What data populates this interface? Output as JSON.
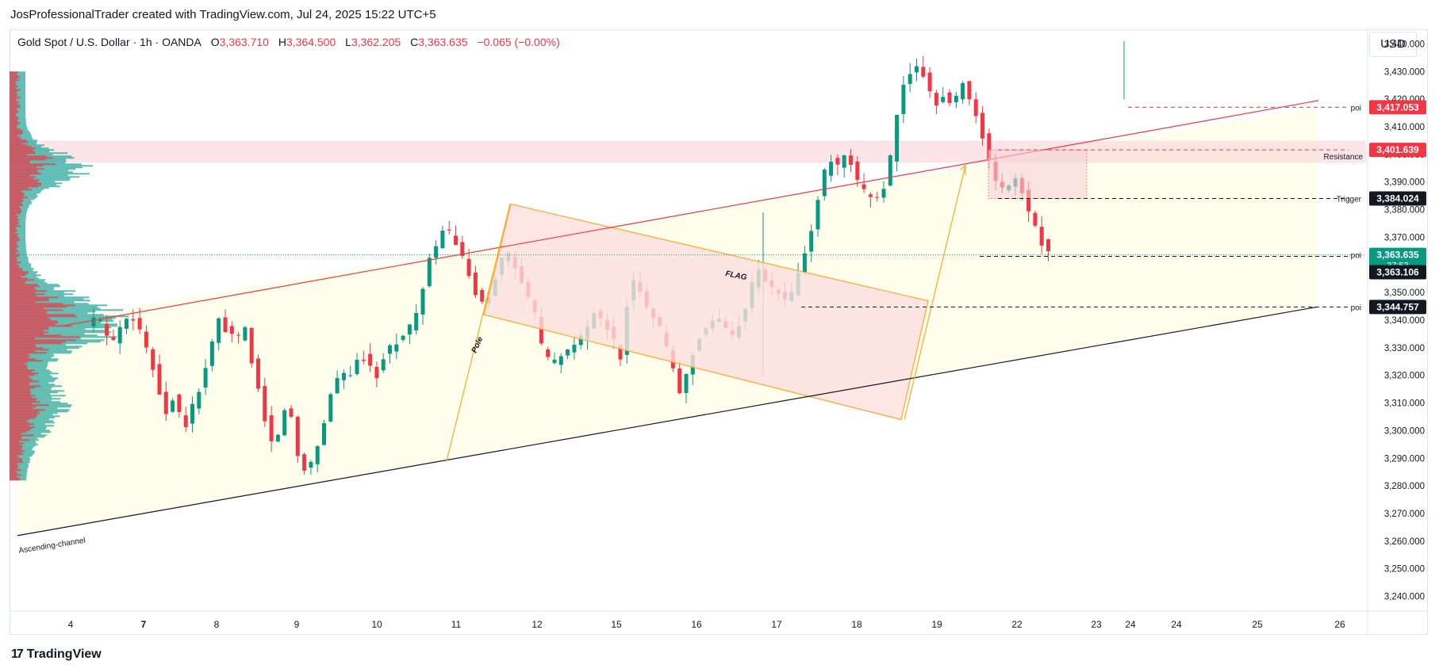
{
  "caption": "JosProfessionalTrader created with TradingView.com, Jul 24, 2025 15:22 UTC+5",
  "legend": {
    "symbol": "Gold Spot / U.S. Dollar · 1h · OANDA",
    "open_label": "O",
    "open": "3,363.710",
    "high_label": "H",
    "high": "3,364.500",
    "low_label": "L",
    "low": "3,362.205",
    "close_label": "C",
    "close": "3,363.635",
    "change": "−0.065 (−0.00%)"
  },
  "currency": "USD",
  "footer": {
    "logo_mark": "17",
    "brand": "TradingView"
  },
  "chart_data": {
    "type": "candlestick",
    "ylim": [
      3235,
      3445
    ],
    "y_ticks": [
      "3,240.000",
      "3,250.000",
      "3,260.000",
      "3,270.000",
      "3,280.000",
      "3,290.000",
      "3,300.000",
      "3,310.000",
      "3,320.000",
      "3,330.000",
      "3,340.000",
      "3,350.000",
      "3,360.000",
      "3,370.000",
      "3,380.000",
      "3,390.000",
      "3,400.000",
      "3,410.000",
      "3,420.000",
      "3,430.000",
      "3,440.000"
    ],
    "y_tick_values": [
      3240,
      3250,
      3260,
      3270,
      3280,
      3290,
      3300,
      3310,
      3320,
      3330,
      3340,
      3350,
      3360,
      3370,
      3380,
      3390,
      3400,
      3410,
      3420,
      3430,
      3440
    ],
    "x_ticks": [
      "4",
      "7",
      "8",
      "9",
      "10",
      "11",
      "12",
      "15",
      "16",
      "17",
      "18",
      "19",
      "22",
      "23",
      "24",
      "24",
      "25",
      "26"
    ],
    "x_tick_bold": [
      false,
      true,
      false,
      false,
      false,
      false,
      false,
      false,
      false,
      false,
      false,
      false,
      false,
      false,
      false,
      false,
      false,
      false
    ],
    "price_labels": [
      {
        "value": 3417.053,
        "text": "3,417.053",
        "bg": "#f23645",
        "fg": "#ffffff",
        "tag": "poi"
      },
      {
        "value": 3401.639,
        "text": "3,401.639",
        "bg": "#f23645",
        "fg": "#ffffff",
        "tag": "Resistance"
      },
      {
        "value": 3384.024,
        "text": "3,384.024",
        "bg": "#131722",
        "fg": "#ffffff",
        "tag": "Trigger"
      },
      {
        "value": 3363.635,
        "text": "3,363.635",
        "sub": "37:53",
        "bg": "#089981",
        "fg": "#ffffff",
        "tag": "poi"
      },
      {
        "value": 3363.106,
        "text": "3,363.106",
        "bg": "#131722",
        "fg": "#ffffff",
        "tag": ""
      },
      {
        "value": 3344.757,
        "text": "3,344.757",
        "bg": "#131722",
        "fg": "#ffffff",
        "tag": "poi"
      }
    ],
    "annotations": {
      "ascending_channel": "Ascending-channel",
      "flag": "FLAG",
      "pole": "Pole",
      "resistance": "Resistance",
      "trigger": "Trigger",
      "poi": "poi"
    },
    "path_points": [
      [
        3337,
        0
      ],
      [
        3342,
        6
      ],
      [
        3336,
        12
      ],
      [
        3332,
        18
      ],
      [
        3340,
        24
      ],
      [
        3343,
        30
      ],
      [
        3336,
        36
      ],
      [
        3328,
        42
      ],
      [
        3318,
        48
      ],
      [
        3306,
        54
      ],
      [
        3314,
        60
      ],
      [
        3300,
        66
      ],
      [
        3308,
        72
      ],
      [
        3316,
        78
      ],
      [
        3328,
        84
      ],
      [
        3340,
        90
      ],
      [
        3336,
        96
      ],
      [
        3332,
        102
      ],
      [
        3338,
        108
      ],
      [
        3322,
        114
      ],
      [
        3310,
        120
      ],
      [
        3295,
        126
      ],
      [
        3300,
        132
      ],
      [
        3312,
        138
      ],
      [
        3292,
        144
      ],
      [
        3286,
        150
      ],
      [
        3290,
        156
      ],
      [
        3302,
        162
      ],
      [
        3315,
        168
      ],
      [
        3322,
        174
      ],
      [
        3318,
        180
      ],
      [
        3326,
        186
      ],
      [
        3327,
        192
      ],
      [
        3319,
        198
      ],
      [
        3328,
        204
      ],
      [
        3331,
        210
      ],
      [
        3334,
        216
      ],
      [
        3338,
        222
      ],
      [
        3344,
        228
      ],
      [
        3360,
        234
      ],
      [
        3368,
        240
      ],
      [
        3374,
        246
      ],
      [
        3368,
        252
      ],
      [
        3362,
        258
      ],
      [
        3354,
        264
      ],
      [
        3344,
        270
      ],
      [
        3350,
        276
      ],
      [
        3358,
        282
      ],
      [
        3366,
        288
      ],
      [
        3358,
        294
      ],
      [
        3350,
        300
      ],
      [
        3346,
        306
      ],
      [
        3330,
        312
      ],
      [
        3324,
        318
      ],
      [
        3326,
        324
      ],
      [
        3328,
        330
      ],
      [
        3332,
        336
      ],
      [
        3336,
        342
      ],
      [
        3342,
        348
      ],
      [
        3340,
        354
      ],
      [
        3334,
        360
      ],
      [
        3326,
        366
      ],
      [
        3352,
        372
      ],
      [
        3354,
        378
      ],
      [
        3346,
        384
      ],
      [
        3340,
        390
      ],
      [
        3334,
        396
      ],
      [
        3322,
        402
      ],
      [
        3312,
        408
      ],
      [
        3326,
        414
      ],
      [
        3334,
        420
      ],
      [
        3338,
        426
      ],
      [
        3340,
        432
      ],
      [
        3338,
        438
      ],
      [
        3334,
        444
      ],
      [
        3342,
        450
      ],
      [
        3352,
        456
      ],
      [
        3358,
        462
      ],
      [
        3352,
        468
      ],
      [
        3350,
        474
      ],
      [
        3346,
        480
      ],
      [
        3352,
        486
      ],
      [
        3364,
        492
      ],
      [
        3374,
        498
      ],
      [
        3390,
        504
      ],
      [
        3398,
        510
      ],
      [
        3395,
        516
      ],
      [
        3400,
        522
      ],
      [
        3390,
        528
      ],
      [
        3386,
        534
      ],
      [
        3384,
        540
      ],
      [
        3386,
        546
      ],
      [
        3400,
        552
      ],
      [
        3420,
        558
      ],
      [
        3430,
        564
      ],
      [
        3431,
        570
      ],
      [
        3428,
        576
      ],
      [
        3418,
        582
      ],
      [
        3422,
        588
      ],
      [
        3416,
        594
      ],
      [
        3428,
        600
      ],
      [
        3420,
        606
      ],
      [
        3412,
        612
      ],
      [
        3400,
        618
      ],
      [
        3390,
        624
      ],
      [
        3386,
        630
      ],
      [
        3392,
        636
      ],
      [
        3386,
        642
      ],
      [
        3378,
        648
      ],
      [
        3370,
        654
      ],
      [
        3364,
        660
      ]
    ]
  }
}
